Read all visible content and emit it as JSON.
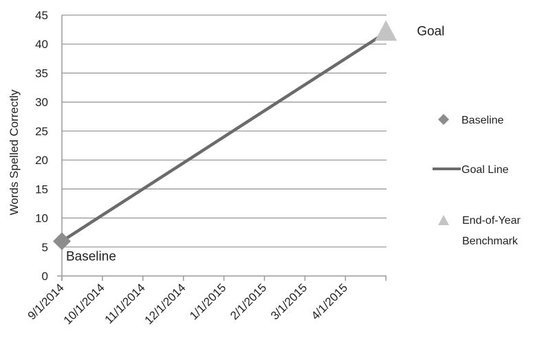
{
  "chart_data": {
    "type": "line",
    "title": "",
    "xlabel": "",
    "ylabel": "Words Spelled Correctly",
    "x_tick_labels": [
      "9/1/2014",
      "10/1/2014",
      "11/1/2014",
      "12/1/2014",
      "1/1/2015",
      "2/1/2015",
      "3/1/2015",
      "4/1/2015"
    ],
    "xlim": [
      "9/1/2014",
      "5/1/2015"
    ],
    "ylim": [
      0,
      45
    ],
    "yticks": [
      0,
      5,
      10,
      15,
      20,
      25,
      30,
      35,
      40,
      45
    ],
    "grid": "horizontal",
    "legend_position": "right",
    "series": [
      {
        "name": "Baseline",
        "marker": "diamond",
        "color": "#8c8c8c",
        "points": [
          {
            "x": "9/1/2014",
            "y": 6
          }
        ]
      },
      {
        "name": "Goal Line",
        "marker": "line",
        "color": "#6b6b6b",
        "points": [
          {
            "x": "9/1/2014",
            "y": 6
          },
          {
            "x": "5/1/2015",
            "y": 42
          }
        ]
      },
      {
        "name": "End-of-Year Benchmark",
        "marker": "triangle",
        "color": "#c4c4c4",
        "points": [
          {
            "x": "5/1/2015",
            "y": 42
          }
        ]
      }
    ],
    "annotations": [
      {
        "text": "Goal",
        "x": "5/1/2015",
        "y": 42
      },
      {
        "text": "Baseline",
        "x": "9/1/2014",
        "y": 6
      }
    ],
    "legend": {
      "baseline_label": "Baseline",
      "goal_line_label": "Goal Line",
      "benchmark_label_line1": "End-of-Year",
      "benchmark_label_line2": "Benchmark"
    }
  }
}
